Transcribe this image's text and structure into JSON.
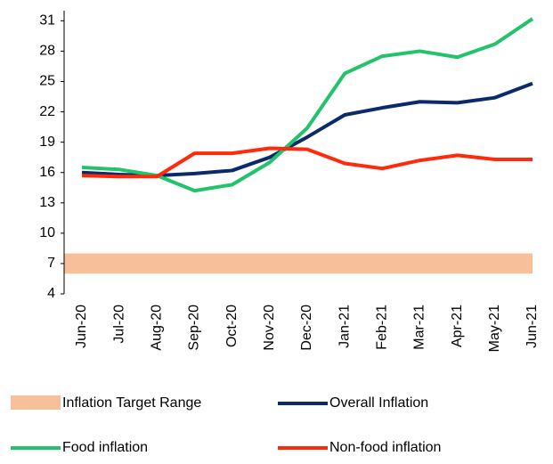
{
  "chart_data": {
    "type": "line",
    "categories": [
      "Jun-20",
      "Jul-20",
      "Aug-20",
      "Sep-20",
      "Oct-20",
      "Nov-20",
      "Dec-20",
      "Jan-21",
      "Feb-21",
      "Mar-21",
      "Apr-21",
      "May-21",
      "Jun-21"
    ],
    "band": {
      "name": "Inflation Target Range",
      "color": "#f8c09a",
      "range": [
        6,
        8
      ]
    },
    "series": [
      {
        "name": "Overall Inflation",
        "color": "#0b2a6b",
        "values": [
          16.0,
          15.8,
          15.7,
          15.9,
          16.2,
          17.5,
          19.5,
          21.7,
          22.4,
          23.0,
          22.9,
          23.4,
          24.8
        ]
      },
      {
        "name": "Food inflation",
        "color": "#22c36a",
        "values": [
          16.5,
          16.3,
          15.7,
          14.2,
          14.8,
          17.0,
          20.4,
          25.8,
          27.5,
          28.0,
          27.4,
          28.7,
          31.2
        ]
      },
      {
        "name": "Non-food inflation",
        "color": "#ff2a0a",
        "values": [
          15.7,
          15.6,
          15.6,
          17.9,
          17.9,
          18.4,
          18.3,
          16.9,
          16.4,
          17.2,
          17.7,
          17.3,
          17.3
        ]
      }
    ],
    "ylim": [
      4,
      32
    ],
    "yticks": [
      4,
      7,
      10,
      13,
      16,
      19,
      22,
      25,
      28,
      31
    ]
  }
}
